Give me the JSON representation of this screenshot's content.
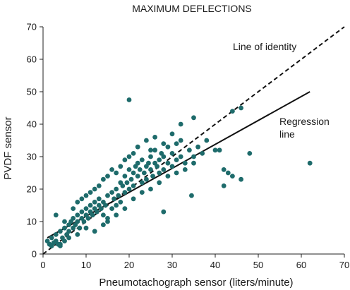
{
  "chart_data": {
    "type": "scatter",
    "title": "MAXIMUM DEFLECTIONS",
    "xlabel": "Pneumotachograph sensor (liters/minute)",
    "ylabel": "PVDF sensor",
    "xlim": [
      0,
      70
    ],
    "ylim": [
      0,
      70
    ],
    "xticks": [
      "0",
      "10",
      "20",
      "30",
      "40",
      "50",
      "60",
      "70"
    ],
    "yticks": [
      "0",
      "10",
      "20",
      "30",
      "40",
      "50",
      "60",
      "70"
    ],
    "grid": false,
    "point_color": "#1e6b6b",
    "points": [
      [
        1,
        4
      ],
      [
        1.5,
        3
      ],
      [
        2,
        2.5
      ],
      [
        2.5,
        3.5
      ],
      [
        2,
        5
      ],
      [
        3,
        4
      ],
      [
        3.5,
        3
      ],
      [
        3,
        6
      ],
      [
        4,
        2.5
      ],
      [
        4.5,
        5
      ],
      [
        4,
        7
      ],
      [
        5,
        4
      ],
      [
        5.5,
        6
      ],
      [
        5,
        8
      ],
      [
        6,
        7
      ],
      [
        6,
        9
      ],
      [
        6.5,
        10
      ],
      [
        7,
        8
      ],
      [
        7,
        11
      ],
      [
        7.5,
        9
      ],
      [
        8,
        10
      ],
      [
        8,
        12
      ],
      [
        8.5,
        8
      ],
      [
        9,
        11
      ],
      [
        9,
        13
      ],
      [
        9.5,
        10
      ],
      [
        10,
        12
      ],
      [
        10,
        14
      ],
      [
        10.5,
        11
      ],
      [
        11,
        13
      ],
      [
        11,
        15
      ],
      [
        11.5,
        12
      ],
      [
        12,
        14
      ],
      [
        12,
        16
      ],
      [
        12.5,
        13
      ],
      [
        13,
        15
      ],
      [
        13,
        17
      ],
      [
        13.5,
        14
      ],
      [
        14,
        16
      ],
      [
        14,
        12
      ],
      [
        14.5,
        15
      ],
      [
        15,
        18
      ],
      [
        15,
        11
      ],
      [
        16,
        19
      ],
      [
        16,
        14
      ],
      [
        16.5,
        17
      ],
      [
        17,
        20
      ],
      [
        17,
        15
      ],
      [
        17.5,
        18
      ],
      [
        18,
        22
      ],
      [
        18,
        16
      ],
      [
        18.5,
        21
      ],
      [
        19,
        24
      ],
      [
        19,
        19
      ],
      [
        19.5,
        22
      ],
      [
        20,
        26
      ],
      [
        20,
        20
      ],
      [
        20.5,
        23
      ],
      [
        21,
        25
      ],
      [
        21,
        21
      ],
      [
        21.5,
        27
      ],
      [
        22,
        24
      ],
      [
        22,
        28
      ],
      [
        22.5,
        26
      ],
      [
        23,
        29
      ],
      [
        23,
        22
      ],
      [
        23.5,
        25
      ],
      [
        24,
        27
      ],
      [
        24,
        23
      ],
      [
        24.5,
        28
      ],
      [
        25,
        26
      ],
      [
        25,
        30
      ],
      [
        25.5,
        24
      ],
      [
        26,
        28
      ],
      [
        26,
        32
      ],
      [
        26.5,
        27
      ],
      [
        27,
        29
      ],
      [
        27,
        25
      ],
      [
        27.5,
        31
      ],
      [
        28,
        30
      ],
      [
        28,
        26
      ],
      [
        29,
        33
      ],
      [
        29,
        28
      ],
      [
        30,
        31
      ],
      [
        30,
        27
      ],
      [
        31,
        34
      ],
      [
        31,
        29
      ],
      [
        32,
        30
      ],
      [
        32,
        35
      ],
      [
        33,
        28
      ],
      [
        34,
        32
      ],
      [
        35,
        30
      ],
      [
        36,
        33
      ],
      [
        37,
        31
      ],
      [
        38,
        35
      ],
      [
        40,
        32
      ],
      [
        41,
        32
      ],
      [
        42,
        26
      ],
      [
        43,
        25
      ],
      [
        44,
        24
      ],
      [
        46,
        23
      ],
      [
        48,
        31
      ],
      [
        3,
        12
      ],
      [
        5,
        10
      ],
      [
        7,
        14
      ],
      [
        8,
        16
      ],
      [
        9,
        17
      ],
      [
        10,
        18
      ],
      [
        11,
        19
      ],
      [
        12,
        20
      ],
      [
        13,
        21
      ],
      [
        14,
        23
      ],
      [
        15,
        24
      ],
      [
        16,
        26
      ],
      [
        17,
        25
      ],
      [
        18,
        27
      ],
      [
        19,
        29
      ],
      [
        20,
        30
      ],
      [
        21,
        31
      ],
      [
        22,
        33
      ],
      [
        24,
        35
      ],
      [
        25,
        32
      ],
      [
        26,
        36
      ],
      [
        28,
        34
      ],
      [
        30,
        37
      ],
      [
        32,
        40
      ],
      [
        35,
        42
      ],
      [
        44,
        44
      ],
      [
        46,
        45
      ],
      [
        20,
        47.5
      ],
      [
        34.5,
        18
      ],
      [
        42,
        21
      ],
      [
        28,
        13
      ],
      [
        62,
        28
      ],
      [
        12,
        7
      ],
      [
        14,
        9
      ],
      [
        4,
        3
      ],
      [
        6,
        5
      ],
      [
        8,
        6
      ],
      [
        10,
        8
      ],
      [
        15,
        10
      ],
      [
        17,
        12
      ],
      [
        19,
        14
      ],
      [
        21,
        17
      ],
      [
        23,
        19
      ],
      [
        25,
        20
      ],
      [
        27,
        22
      ],
      [
        29,
        24
      ],
      [
        31,
        25
      ],
      [
        33,
        26
      ],
      [
        35,
        28
      ]
    ],
    "lines": [
      {
        "name": "Line of identity",
        "style": "dashed",
        "from": [
          0,
          0
        ],
        "to": [
          70,
          70
        ]
      },
      {
        "name": "Regression line",
        "style": "solid",
        "from": [
          1,
          5
        ],
        "to": [
          62,
          50
        ]
      }
    ],
    "annotations": [
      {
        "text": "Line of identity"
      },
      {
        "text": "Regression"
      },
      {
        "text": "line"
      }
    ]
  }
}
